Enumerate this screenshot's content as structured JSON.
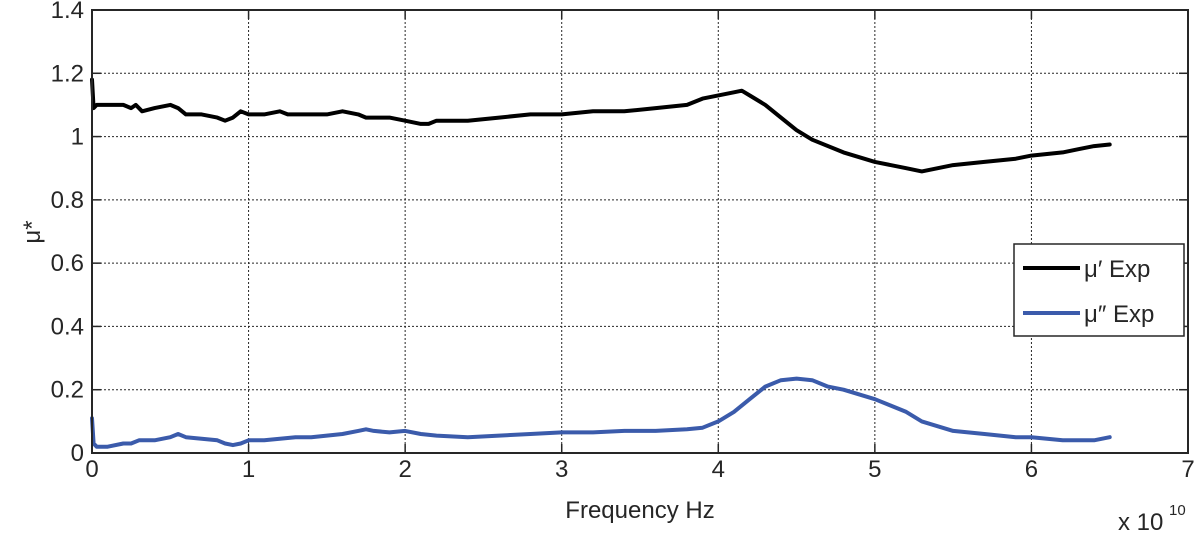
{
  "chart_data": {
    "type": "line",
    "xlabel": "Frequency Hz",
    "ylabel": "μ*",
    "x_multiplier_label": "x 10",
    "x_multiplier_exponent": "10",
    "xlim": [
      0,
      7
    ],
    "ylim": [
      0,
      1.4
    ],
    "x_ticks": [
      "0",
      "1",
      "2",
      "3",
      "4",
      "5",
      "6",
      "7"
    ],
    "y_ticks": [
      "0",
      "0.2",
      "0.4",
      "0.6",
      "0.8",
      "1",
      "1.2",
      "1.4"
    ],
    "grid": true,
    "legend_position": "right",
    "series": [
      {
        "name": "μ′ Exp",
        "color": "#000000",
        "x": [
          0.0,
          0.01,
          0.03,
          0.1,
          0.2,
          0.25,
          0.28,
          0.32,
          0.4,
          0.5,
          0.55,
          0.6,
          0.7,
          0.8,
          0.85,
          0.9,
          0.95,
          1.0,
          1.1,
          1.2,
          1.25,
          1.3,
          1.4,
          1.5,
          1.6,
          1.7,
          1.75,
          1.8,
          1.9,
          2.0,
          2.1,
          2.15,
          2.2,
          2.4,
          2.6,
          2.8,
          3.0,
          3.2,
          3.4,
          3.6,
          3.8,
          3.9,
          4.0,
          4.1,
          4.15,
          4.2,
          4.3,
          4.4,
          4.5,
          4.6,
          4.8,
          5.0,
          5.2,
          5.3,
          5.5,
          5.7,
          5.9,
          6.0,
          6.2,
          6.3,
          6.4,
          6.5
        ],
        "y": [
          1.18,
          1.09,
          1.1,
          1.1,
          1.1,
          1.09,
          1.1,
          1.08,
          1.09,
          1.1,
          1.09,
          1.07,
          1.07,
          1.06,
          1.05,
          1.06,
          1.08,
          1.07,
          1.07,
          1.08,
          1.07,
          1.07,
          1.07,
          1.07,
          1.08,
          1.07,
          1.06,
          1.06,
          1.06,
          1.05,
          1.04,
          1.04,
          1.05,
          1.05,
          1.06,
          1.07,
          1.07,
          1.08,
          1.08,
          1.09,
          1.1,
          1.12,
          1.13,
          1.14,
          1.145,
          1.13,
          1.1,
          1.06,
          1.02,
          0.99,
          0.95,
          0.92,
          0.9,
          0.89,
          0.91,
          0.92,
          0.93,
          0.94,
          0.95,
          0.96,
          0.97,
          0.975
        ]
      },
      {
        "name": "μ″ Exp",
        "color": "#3b5bab",
        "x": [
          0.0,
          0.01,
          0.03,
          0.1,
          0.2,
          0.25,
          0.3,
          0.4,
          0.5,
          0.55,
          0.6,
          0.7,
          0.8,
          0.85,
          0.9,
          0.95,
          1.0,
          1.1,
          1.2,
          1.3,
          1.4,
          1.5,
          1.6,
          1.7,
          1.75,
          1.8,
          1.9,
          2.0,
          2.1,
          2.2,
          2.4,
          2.6,
          2.8,
          3.0,
          3.2,
          3.4,
          3.6,
          3.8,
          3.9,
          4.0,
          4.1,
          4.2,
          4.3,
          4.4,
          4.5,
          4.6,
          4.7,
          4.8,
          5.0,
          5.1,
          5.2,
          5.3,
          5.5,
          5.7,
          5.9,
          6.0,
          6.2,
          6.3,
          6.4,
          6.5
        ],
        "y": [
          0.11,
          0.03,
          0.02,
          0.02,
          0.03,
          0.03,
          0.04,
          0.04,
          0.05,
          0.06,
          0.05,
          0.045,
          0.04,
          0.03,
          0.025,
          0.03,
          0.04,
          0.04,
          0.045,
          0.05,
          0.05,
          0.055,
          0.06,
          0.07,
          0.075,
          0.07,
          0.065,
          0.07,
          0.06,
          0.055,
          0.05,
          0.055,
          0.06,
          0.065,
          0.065,
          0.07,
          0.07,
          0.075,
          0.08,
          0.1,
          0.13,
          0.17,
          0.21,
          0.23,
          0.235,
          0.23,
          0.21,
          0.2,
          0.17,
          0.15,
          0.13,
          0.1,
          0.07,
          0.06,
          0.05,
          0.05,
          0.04,
          0.04,
          0.04,
          0.05
        ]
      }
    ]
  }
}
